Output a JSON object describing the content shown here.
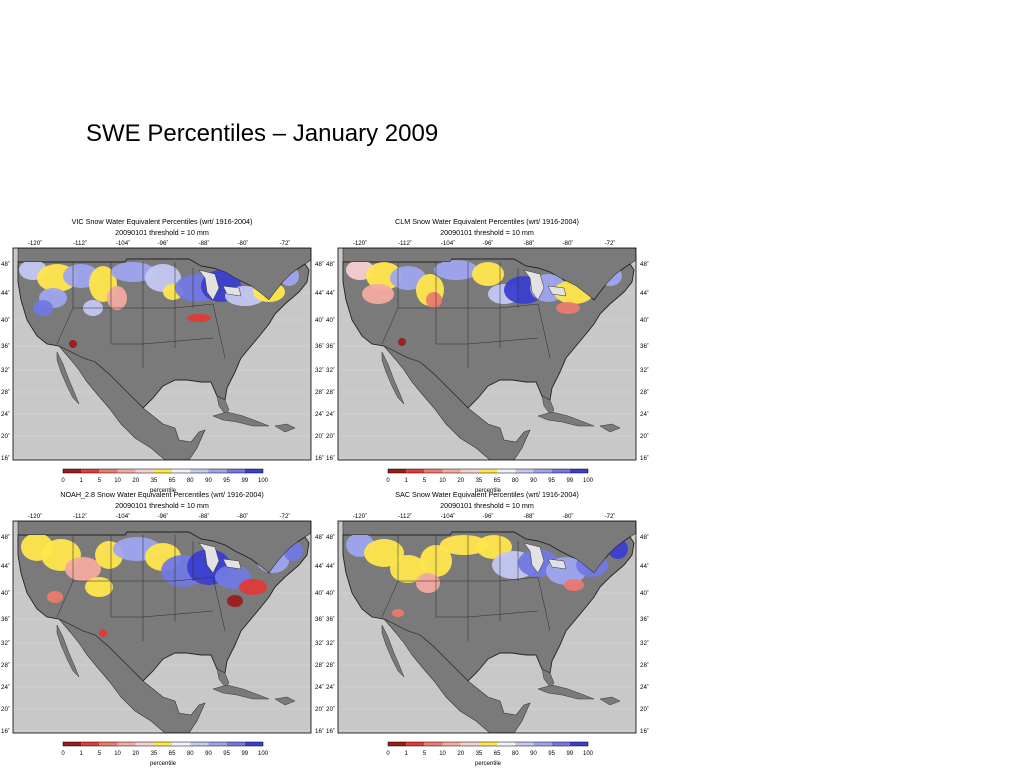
{
  "slide": {
    "title": "SWE Percentiles – January 2009"
  },
  "chart_data": [
    {
      "type": "heatmap",
      "panel": "vic",
      "title": "VIC Snow Water Equivalent Percentiles (wrt/ 1916-2004)",
      "subtitle": "20090101   threshold = 10 mm",
      "xticks": [
        "-120˚",
        "-112˚",
        "-104˚",
        "-96˚",
        "-88˚",
        "-80˚",
        "-72˚"
      ],
      "yticks_left": [
        "48˚",
        "44˚",
        "40˚",
        "36˚",
        "32˚",
        "28˚",
        "24˚",
        "20˚",
        "16˚"
      ],
      "yticks_right": [
        "48˚",
        "44˚",
        "40˚",
        "36˚",
        "32˚",
        "28˚",
        "24˚",
        "20˚",
        "16˚"
      ],
      "colorbar": {
        "label": "percentile",
        "ticks": [
          "0",
          "1",
          "5",
          "10",
          "20",
          "35",
          "65",
          "80",
          "90",
          "95",
          "99",
          "100"
        ]
      }
    },
    {
      "type": "heatmap",
      "panel": "clm",
      "title": "CLM Snow Water Equivalent Percentiles (wrt/ 1916-2004)",
      "subtitle": "20090101   threshold = 10 mm",
      "xticks": [
        "-120˚",
        "-112˚",
        "-104˚",
        "-96˚",
        "-88˚",
        "-80˚",
        "-72˚"
      ],
      "yticks_left": [
        "48˚",
        "44˚",
        "40˚",
        "36˚",
        "32˚",
        "28˚",
        "24˚",
        "20˚",
        "16˚"
      ],
      "yticks_right": [
        "48˚",
        "44˚",
        "40˚",
        "36˚",
        "32˚",
        "28˚",
        "24˚",
        "20˚",
        "16˚"
      ],
      "colorbar": {
        "label": "percentile",
        "ticks": [
          "0",
          "1",
          "5",
          "10",
          "20",
          "35",
          "65",
          "80",
          "90",
          "95",
          "99",
          "100"
        ]
      }
    },
    {
      "type": "heatmap",
      "panel": "noah",
      "title": "NOAH_2.8 Snow Water Equivalent Percentiles (wrt/ 1916-2004)",
      "subtitle": "20090101   threshold = 10 mm",
      "xticks": [
        "-120˚",
        "-112˚",
        "-104˚",
        "-96˚",
        "-88˚",
        "-80˚",
        "-72˚"
      ],
      "yticks_left": [
        "48˚",
        "44˚",
        "40˚",
        "36˚",
        "32˚",
        "28˚",
        "24˚",
        "20˚",
        "16˚"
      ],
      "yticks_right": [
        "48˚",
        "44˚",
        "40˚",
        "36˚",
        "32˚",
        "28˚",
        "24˚",
        "20˚",
        "16˚"
      ],
      "colorbar": {
        "label": "percentile",
        "ticks": [
          "0",
          "1",
          "5",
          "10",
          "20",
          "35",
          "65",
          "80",
          "90",
          "95",
          "99",
          "100"
        ]
      }
    },
    {
      "type": "heatmap",
      "panel": "sac",
      "title": "SAC Snow Water Equivalent Percentiles (wrt/ 1916-2004)",
      "subtitle": "20090101   threshold = 10 mm",
      "xticks": [
        "-120˚",
        "-112˚",
        "-104˚",
        "-96˚",
        "-88˚",
        "-80˚",
        "-72˚"
      ],
      "yticks_left": [
        "48˚",
        "44˚",
        "40˚",
        "36˚",
        "32˚",
        "28˚",
        "24˚",
        "20˚",
        "16˚"
      ],
      "yticks_right": [
        "48˚",
        "44˚",
        "40˚",
        "36˚",
        "32˚",
        "28˚",
        "24˚",
        "20˚",
        "16˚"
      ],
      "colorbar": {
        "label": "percentile",
        "ticks": [
          "0",
          "1",
          "5",
          "10",
          "20",
          "35",
          "65",
          "80",
          "90",
          "95",
          "99",
          "100"
        ]
      }
    }
  ],
  "colors": {
    "bins": [
      "#9b1c1c",
      "#e03a3a",
      "#ec7a6e",
      "#f3aaa1",
      "#f7cfcf",
      "#ffe64d",
      "#f1f1f8",
      "#c4c8f2",
      "#9ea5ee",
      "#7279e2",
      "#3b3fd0"
    ],
    "ocean": "#c8c8c8",
    "land": "#7a7a7a",
    "lakes": "#e2e2e2",
    "grid": "#d9d9d9"
  }
}
